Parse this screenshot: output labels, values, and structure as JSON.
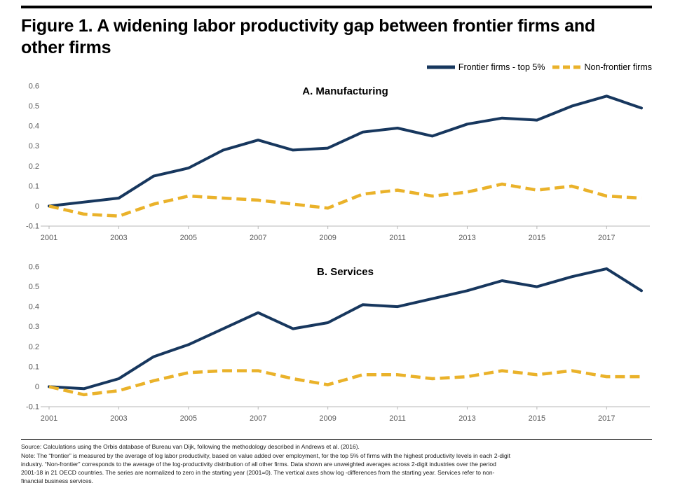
{
  "figure": {
    "title": "Figure 1. A widening labor productivity gap between frontier firms and other firms"
  },
  "legend": {
    "frontier": "Frontier firms - top 5%",
    "nonfrontier": "Non-frontier firms"
  },
  "colors": {
    "frontier": "#17375E",
    "nonfrontier": "#EAB22A",
    "axis": "#B7B7B7",
    "tick_text": "#595959"
  },
  "chart_data": [
    {
      "type": "line",
      "title": "A. Manufacturing",
      "x": [
        2001,
        2002,
        2003,
        2004,
        2005,
        2006,
        2007,
        2008,
        2009,
        2010,
        2011,
        2012,
        2013,
        2014,
        2015,
        2016,
        2017,
        2018
      ],
      "series": [
        {
          "name": "Frontier firms - top 5%",
          "values": [
            0,
            0.02,
            0.04,
            0.15,
            0.19,
            0.28,
            0.33,
            0.28,
            0.29,
            0.37,
            0.39,
            0.35,
            0.41,
            0.44,
            0.43,
            0.5,
            0.55,
            0.49
          ]
        },
        {
          "name": "Non-frontier firms",
          "values": [
            0,
            -0.04,
            -0.05,
            0.01,
            0.05,
            0.04,
            0.03,
            0.01,
            -0.01,
            0.06,
            0.08,
            0.05,
            0.07,
            0.11,
            0.08,
            0.1,
            0.05,
            0.04
          ]
        }
      ],
      "ylim": [
        -0.1,
        0.6
      ],
      "yticks": [
        0.6,
        0.5,
        0.4,
        0.3,
        0.2,
        0.1,
        0,
        -0.1
      ],
      "xticks": [
        2001,
        2003,
        2005,
        2007,
        2009,
        2011,
        2013,
        2015,
        2017
      ],
      "grid": false,
      "legend_position": "top-right"
    },
    {
      "type": "line",
      "title": "B. Services",
      "x": [
        2001,
        2002,
        2003,
        2004,
        2005,
        2006,
        2007,
        2008,
        2009,
        2010,
        2011,
        2012,
        2013,
        2014,
        2015,
        2016,
        2017,
        2018
      ],
      "series": [
        {
          "name": "Frontier firms - top 5%",
          "values": [
            0,
            -0.01,
            0.04,
            0.15,
            0.21,
            0.29,
            0.37,
            0.29,
            0.32,
            0.41,
            0.4,
            0.44,
            0.48,
            0.53,
            0.5,
            0.55,
            0.59,
            0.48
          ]
        },
        {
          "name": "Non-frontier firms",
          "values": [
            0,
            -0.04,
            -0.02,
            0.03,
            0.07,
            0.08,
            0.08,
            0.04,
            0.01,
            0.06,
            0.06,
            0.04,
            0.05,
            0.08,
            0.06,
            0.08,
            0.05,
            0.05
          ]
        }
      ],
      "ylim": [
        -0.1,
        0.6
      ],
      "yticks": [
        0.6,
        0.5,
        0.4,
        0.3,
        0.2,
        0.1,
        0,
        -0.1
      ],
      "xticks": [
        2001,
        2003,
        2005,
        2007,
        2009,
        2011,
        2013,
        2015,
        2017
      ],
      "grid": false,
      "legend_position": "top-right"
    }
  ],
  "notes": {
    "source": "Source: Calculations using the Orbis database of Bureau van Dijk, following the methodology described in Andrews et al. (2016).",
    "note": "Note: The “frontier” is measured by the average of log labor productivity, based on value added over employment, for the top 5% of firms with the highest productivity levels in each 2-digit industry. “Non-frontier” corresponds to the average of the log-productivity distribution of all other firms. Data shown are unweighted averages across 2-digit industries over the period 2001-18 in 21 OECD countries. The series are normalized to zero in the starting year (2001=0). The vertical axes show log -differences from the starting year. Services refer to non-financial business services."
  }
}
